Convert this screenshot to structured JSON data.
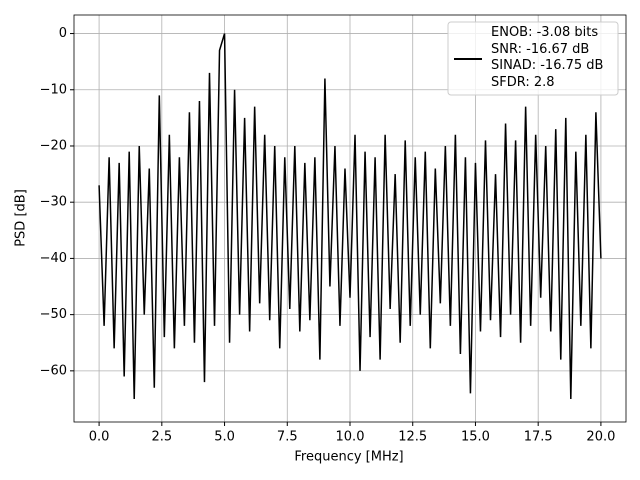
{
  "chart_data": {
    "type": "line",
    "xlabel": "Frequency [MHz]",
    "ylabel": "PSD [dB]",
    "xlim": [
      -1,
      21
    ],
    "ylim": [
      -69.1,
      3.3
    ],
    "xticks": [
      {
        "value": 0,
        "label": "0.0"
      },
      2.5,
      {
        "value": 5,
        "label": "5.0"
      },
      7.5,
      {
        "value": 10,
        "label": "10.0"
      },
      12.5,
      {
        "value": 15,
        "label": "15.0"
      },
      17.5,
      {
        "value": 20,
        "label": "20.0"
      }
    ],
    "yticks": [
      {
        "value": -60,
        "label": "−60"
      },
      {
        "value": -50,
        "label": "−50"
      },
      {
        "value": -40,
        "label": "−40"
      },
      {
        "value": -30,
        "label": "−30"
      },
      {
        "value": -20,
        "label": "−20"
      },
      {
        "value": -10,
        "label": "−10"
      },
      0
    ],
    "grid": true,
    "legend": "upper right",
    "x": [
      0,
      0.2,
      0.4,
      0.6,
      0.8,
      1.0,
      1.2,
      1.4,
      1.6,
      1.8,
      2.0,
      2.2,
      2.4,
      2.6,
      2.8,
      3.0,
      3.2,
      3.4,
      3.6,
      3.8,
      4.0,
      4.2,
      4.4,
      4.6,
      4.8,
      5.0,
      5.2,
      5.4,
      5.6,
      5.8,
      6.0,
      6.2,
      6.4,
      6.6,
      6.8,
      7.0,
      7.2,
      7.4,
      7.6,
      7.8,
      8.0,
      8.2,
      8.4,
      8.6,
      8.8,
      9.0,
      9.2,
      9.4,
      9.6,
      9.8,
      10.0,
      10.2,
      10.4,
      10.6,
      10.8,
      11.0,
      11.2,
      11.4,
      11.6,
      11.8,
      12.0,
      12.2,
      12.4,
      12.6,
      12.8,
      13.0,
      13.2,
      13.4,
      13.6,
      13.8,
      14.0,
      14.2,
      14.4,
      14.6,
      14.8,
      15.0,
      15.2,
      15.4,
      15.6,
      15.8,
      16.0,
      16.2,
      16.4,
      16.6,
      16.8,
      17.0,
      17.2,
      17.4,
      17.6,
      17.8,
      18.0,
      18.2,
      18.4,
      18.6,
      18.8,
      19.0,
      19.2,
      19.4,
      19.6,
      19.8,
      20.0
    ],
    "series": [
      {
        "name": "ENOB: -3.08 bits\nSNR: -16.67 dB\nSINAD: -16.75 dB\nSFDR: 2.8",
        "color": "#000000",
        "values": [
          -27,
          -52,
          -22,
          -56,
          -23,
          -61,
          -21,
          -65,
          -20,
          -50,
          -24,
          -63,
          -11,
          -54,
          -18,
          -56,
          -22,
          -52,
          -14,
          -55,
          -12,
          -62,
          -7,
          -52,
          -3,
          0,
          -55,
          -10,
          -50,
          -15,
          -53,
          -13,
          -48,
          -18,
          -51,
          -20,
          -56,
          -22,
          -49,
          -20,
          -53,
          -23,
          -51,
          -22,
          -58,
          -8,
          -45,
          -20,
          -52,
          -24,
          -47,
          -18,
          -60,
          -21,
          -54,
          -22,
          -58,
          -18,
          -49,
          -25,
          -55,
          -19,
          -52,
          -22,
          -50,
          -21,
          -56,
          -24,
          -48,
          -20,
          -52,
          -18,
          -57,
          -22,
          -64,
          -23,
          -53,
          -19,
          -51,
          -25,
          -54,
          -16,
          -50,
          -19,
          -55,
          -13,
          -52,
          -18,
          -47,
          -20,
          -53,
          -17,
          -58,
          -15,
          -65,
          -21,
          -52,
          -18,
          -56,
          -14,
          -40
        ]
      }
    ]
  }
}
